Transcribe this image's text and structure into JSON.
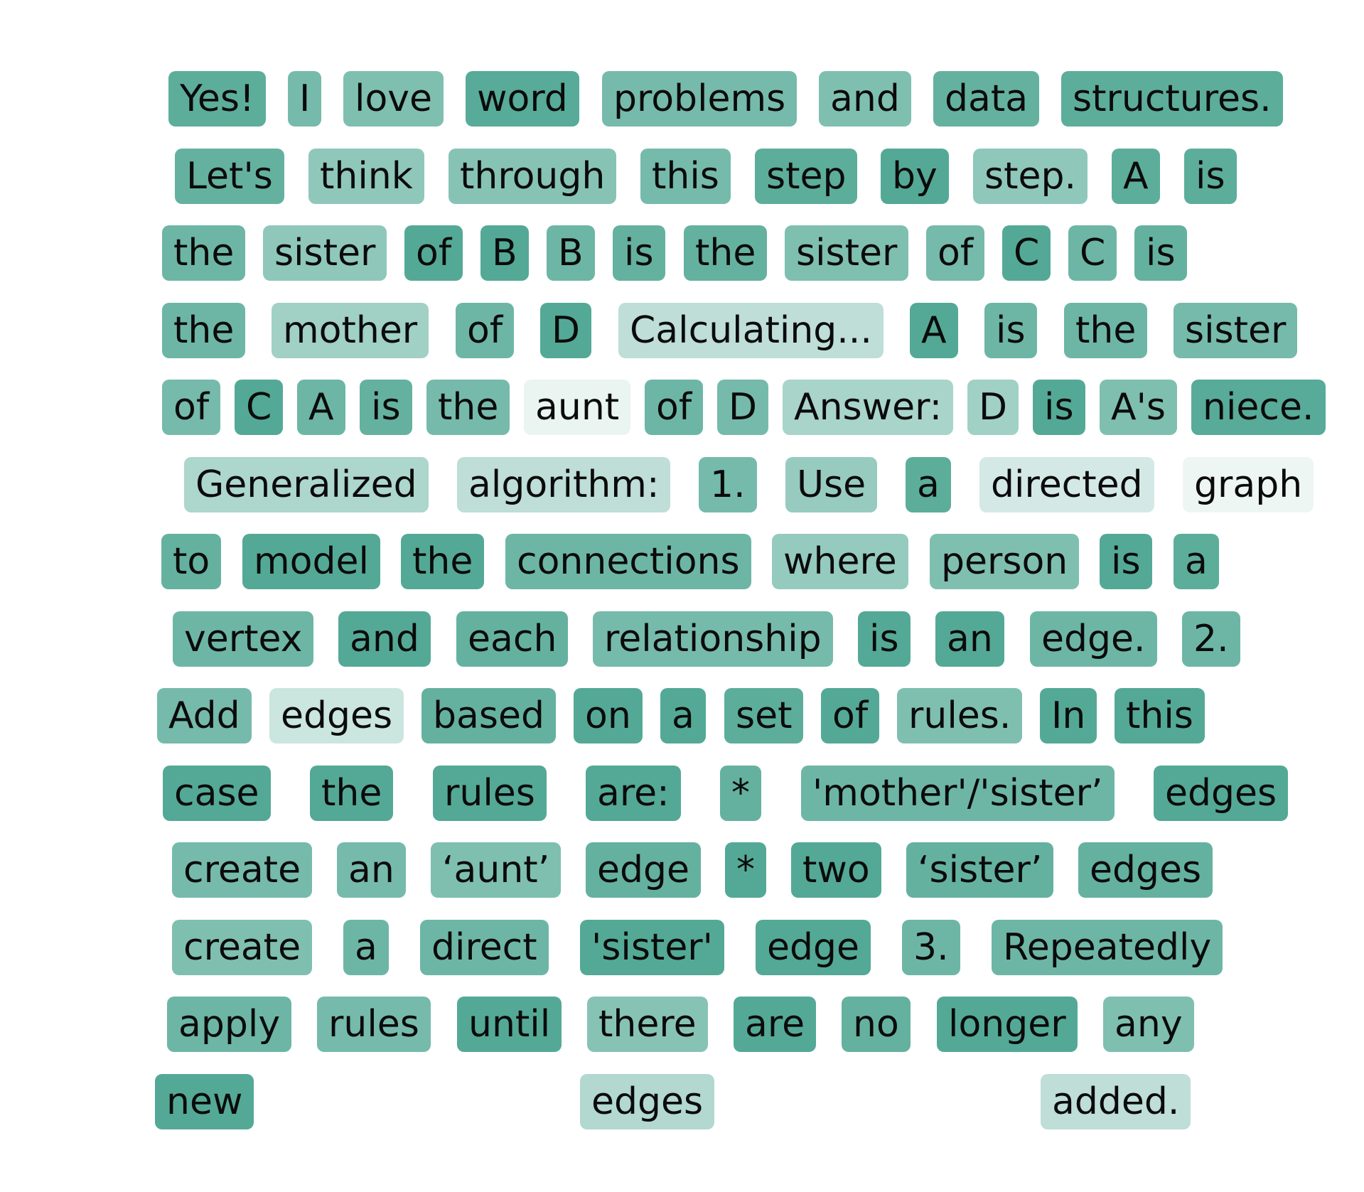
{
  "tokens": [
    [
      {
        "t": "Yes!",
        "a": 0.95
      },
      {
        "t": "I",
        "a": 0.8
      },
      {
        "t": "love",
        "a": 0.75
      },
      {
        "t": "word",
        "a": 0.98
      },
      {
        "t": "problems",
        "a": 0.8
      },
      {
        "t": "and",
        "a": 0.75
      },
      {
        "t": "data",
        "a": 0.9
      },
      {
        "t": "structures.",
        "a": 0.95
      }
    ],
    [
      {
        "t": "Let's",
        "a": 0.9
      },
      {
        "t": "think",
        "a": 0.65
      },
      {
        "t": "through",
        "a": 0.7
      },
      {
        "t": "this",
        "a": 0.8
      },
      {
        "t": "step",
        "a": 0.95
      },
      {
        "t": "by",
        "a": 1.0
      },
      {
        "t": "step.",
        "a": 0.65
      },
      {
        "t": "A",
        "a": 0.95
      },
      {
        "t": "is",
        "a": 0.95
      }
    ],
    [
      {
        "t": "the",
        "a": 0.85
      },
      {
        "t": "sister",
        "a": 0.65
      },
      {
        "t": "of",
        "a": 1.0
      },
      {
        "t": "B",
        "a": 1.0
      },
      {
        "t": "B",
        "a": 0.85
      },
      {
        "t": "is",
        "a": 0.9
      },
      {
        "t": "the",
        "a": 0.9
      },
      {
        "t": "sister",
        "a": 0.75
      },
      {
        "t": "of",
        "a": 0.8
      },
      {
        "t": "C",
        "a": 1.0
      },
      {
        "t": "C",
        "a": 0.85
      },
      {
        "t": "is",
        "a": 0.9
      }
    ],
    [
      {
        "t": "the",
        "a": 0.85
      },
      {
        "t": "mother",
        "a": 0.55
      },
      {
        "t": "of",
        "a": 0.85
      },
      {
        "t": "D",
        "a": 1.0
      },
      {
        "t": "Calculating...",
        "a": 0.38
      },
      {
        "t": "A",
        "a": 1.0
      },
      {
        "t": "is",
        "a": 0.85
      },
      {
        "t": "the",
        "a": 0.85
      },
      {
        "t": "sister",
        "a": 0.8
      }
    ],
    [
      {
        "t": "of",
        "a": 0.8
      },
      {
        "t": "C",
        "a": 1.0
      },
      {
        "t": "A",
        "a": 0.85
      },
      {
        "t": "is",
        "a": 0.9
      },
      {
        "t": "the",
        "a": 0.8
      },
      {
        "t": "aunt",
        "a": 0.12
      },
      {
        "t": "of",
        "a": 0.85
      },
      {
        "t": "D",
        "a": 0.8
      },
      {
        "t": "Answer:",
        "a": 0.5
      },
      {
        "t": "D",
        "a": 0.55
      },
      {
        "t": "is",
        "a": 1.0
      },
      {
        "t": "A's",
        "a": 0.75
      },
      {
        "t": "niece.",
        "a": 0.98
      }
    ],
    [
      {
        "t": "Generalized",
        "a": 0.48
      },
      {
        "t": "algorithm:",
        "a": 0.38
      },
      {
        "t": "1.",
        "a": 0.8
      },
      {
        "t": "Use",
        "a": 0.6
      },
      {
        "t": "a",
        "a": 0.95
      },
      {
        "t": "directed",
        "a": 0.25
      },
      {
        "t": "graph",
        "a": 0.1
      }
    ],
    [
      {
        "t": "to",
        "a": 0.9
      },
      {
        "t": "model",
        "a": 1.0
      },
      {
        "t": "the",
        "a": 1.0
      },
      {
        "t": "connections",
        "a": 0.85
      },
      {
        "t": "where",
        "a": 0.62
      },
      {
        "t": "person",
        "a": 0.75
      },
      {
        "t": "is",
        "a": 1.0
      },
      {
        "t": "a",
        "a": 0.95
      }
    ],
    [
      {
        "t": "vertex",
        "a": 0.85
      },
      {
        "t": "and",
        "a": 1.0
      },
      {
        "t": "each",
        "a": 0.9
      },
      {
        "t": "relationship",
        "a": 0.8
      },
      {
        "t": "is",
        "a": 1.0
      },
      {
        "t": "an",
        "a": 1.0
      },
      {
        "t": "edge.",
        "a": 0.85
      },
      {
        "t": "2.",
        "a": 0.85
      }
    ],
    [
      {
        "t": "Add",
        "a": 0.8
      },
      {
        "t": "edges",
        "a": 0.3
      },
      {
        "t": "based",
        "a": 0.9
      },
      {
        "t": "on",
        "a": 1.0
      },
      {
        "t": "a",
        "a": 1.0
      },
      {
        "t": "set",
        "a": 0.95
      },
      {
        "t": "of",
        "a": 1.0
      },
      {
        "t": "rules.",
        "a": 0.75
      },
      {
        "t": "In",
        "a": 1.0
      },
      {
        "t": "this",
        "a": 1.0
      }
    ],
    [
      {
        "t": "case",
        "a": 1.0
      },
      {
        "t": "the",
        "a": 1.0
      },
      {
        "t": "rules",
        "a": 1.0
      },
      {
        "t": "are:",
        "a": 1.0
      },
      {
        "t": "*",
        "a": 0.9
      },
      {
        "t": "'mother'/'sister’",
        "a": 0.85
      },
      {
        "t": "edges",
        "a": 1.0
      }
    ],
    [
      {
        "t": "create",
        "a": 0.8
      },
      {
        "t": "an",
        "a": 0.8
      },
      {
        "t": "‘aunt’",
        "a": 0.75
      },
      {
        "t": "edge",
        "a": 0.9
      },
      {
        "t": "*",
        "a": 1.0
      },
      {
        "t": "two",
        "a": 1.0
      },
      {
        "t": "‘sister’",
        "a": 0.9
      },
      {
        "t": "edges",
        "a": 0.9
      }
    ],
    [
      {
        "t": "create",
        "a": 0.75
      },
      {
        "t": "a",
        "a": 0.85
      },
      {
        "t": "direct",
        "a": 0.85
      },
      {
        "t": "'sister'",
        "a": 1.0
      },
      {
        "t": "edge",
        "a": 1.0
      },
      {
        "t": "3.",
        "a": 0.85
      },
      {
        "t": "Repeatedly",
        "a": 0.85
      }
    ],
    [
      {
        "t": "apply",
        "a": 0.85
      },
      {
        "t": "rules",
        "a": 0.8
      },
      {
        "t": "until",
        "a": 1.0
      },
      {
        "t": "there",
        "a": 0.7
      },
      {
        "t": "are",
        "a": 1.0
      },
      {
        "t": "no",
        "a": 0.9
      },
      {
        "t": "longer",
        "a": 1.0
      },
      {
        "t": "any",
        "a": 0.75
      }
    ],
    [
      {
        "t": "new",
        "a": 1.0
      },
      {
        "t": "edges",
        "a": 0.45
      },
      {
        "t": "added.",
        "a": 0.38
      }
    ]
  ],
  "colors": {
    "accent": "#54a996"
  }
}
